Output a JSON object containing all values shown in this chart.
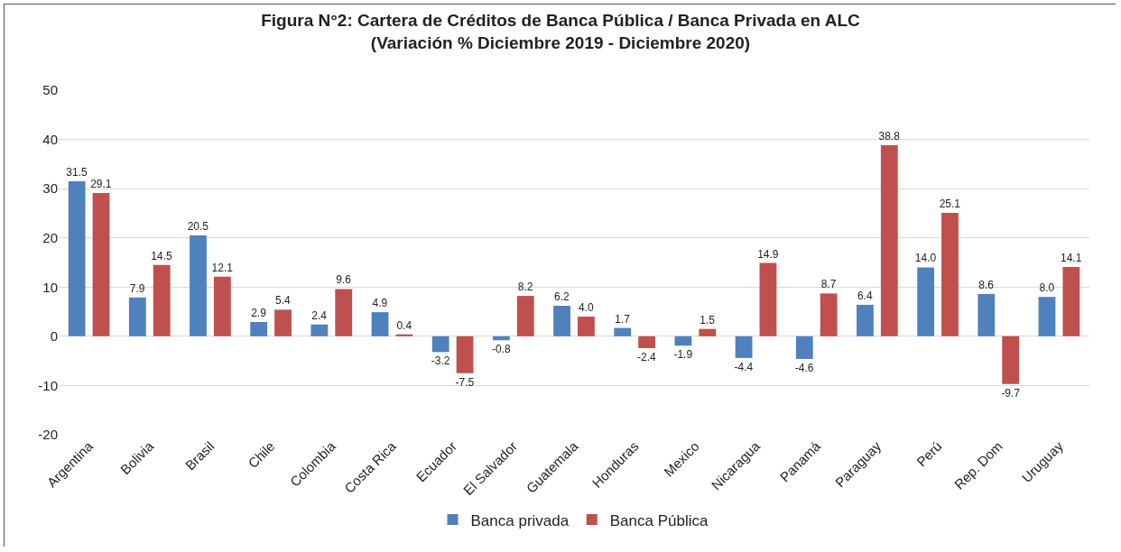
{
  "chart_data": {
    "type": "bar",
    "title": "Figura N°2: Cartera de Créditos de Banca Pública / Banca Privada en ALC\n(Variación % Diciembre 2019 - Diciembre 2020)",
    "categories": [
      "Argentina",
      "Bolivia",
      "Brasil",
      "Chile",
      "Colombia",
      "Costa Rica",
      "Ecuador",
      "El Salvador",
      "Guatemala",
      "Honduras",
      "Mexico",
      "Nicaragua",
      "Panamá",
      "Paraguay",
      "Perú",
      "Rep. Dom",
      "Uruguay"
    ],
    "series": [
      {
        "name": "Banca privada",
        "color": "#4f81bd",
        "values": [
          31.5,
          7.9,
          20.5,
          2.9,
          2.4,
          4.9,
          -3.2,
          -0.8,
          6.2,
          1.7,
          -1.9,
          -4.4,
          -4.6,
          6.4,
          14.0,
          8.6,
          8.0
        ],
        "value_labels": [
          "31.5",
          "7.9",
          "20.5",
          "2.9",
          "2.4",
          "4.9",
          "-3.2",
          "-0.8",
          "6.2",
          "1.7",
          "-1.9",
          "-4.4",
          "-4.6",
          "6.4",
          "14.0",
          "8.6",
          "8.0"
        ]
      },
      {
        "name": "Banca Pública",
        "color": "#c0504d",
        "values": [
          29.1,
          14.5,
          12.1,
          5.4,
          9.6,
          0.4,
          -7.5,
          8.2,
          4.0,
          -2.4,
          1.5,
          14.9,
          8.7,
          38.8,
          25.1,
          -9.7,
          14.1
        ],
        "value_labels": [
          "29.1",
          "14.5",
          "12.1",
          "5.4",
          "9.6",
          "0.4",
          "-7.5",
          "8.2",
          "4.0",
          "-2.4",
          "1.5",
          "14.9",
          "8.7",
          "38.8",
          "25.1",
          "-9.7",
          "14.1"
        ]
      }
    ],
    "ylim": [
      -20,
      50
    ],
    "yticks": [
      -20,
      -10,
      0,
      10,
      20,
      30,
      40,
      50
    ],
    "grid": "y",
    "legend": "bottom"
  }
}
